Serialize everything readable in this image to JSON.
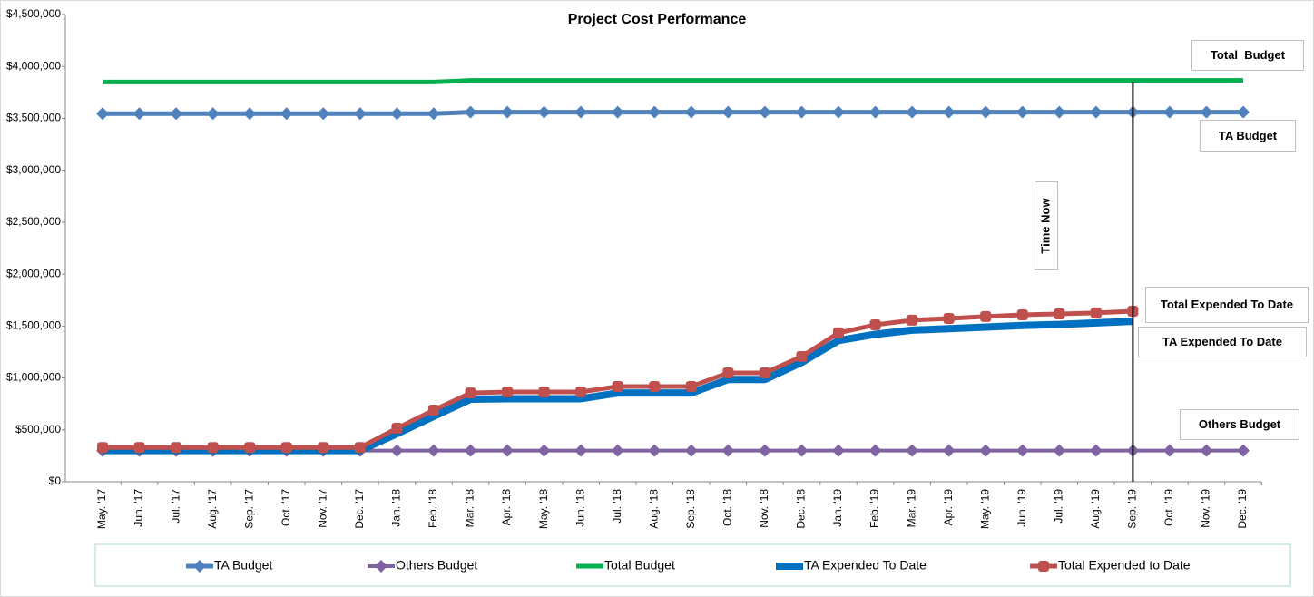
{
  "chart_data": {
    "type": "line",
    "title": "Project Cost Performance",
    "categories": [
      "May. '17",
      "Jun. '17",
      "Jul. '17",
      "Aug. '17",
      "Sep. '17",
      "Oct. '17",
      "Nov. '17",
      "Dec. '17",
      "Jan. '18",
      "Feb. '18",
      "Mar. '18",
      "Apr. '18",
      "May. '18",
      "Jun. '18",
      "Jul. '18",
      "Aug. '18",
      "Sep. '18",
      "Oct. '18",
      "Nov. '18",
      "Dec. '18",
      "Jan. '19",
      "Feb. '19",
      "Mar. '19",
      "Apr. '19",
      "May. '19",
      "Jun. '19",
      "Jul. '19",
      "Aug. '19",
      "Sep. '19",
      "Oct. '19",
      "Nov. '19",
      "Dec. '19"
    ],
    "series": [
      {
        "name": "TA Budget",
        "color": "#4f81bd",
        "marker": "diamond",
        "values": [
          3545000,
          3545000,
          3545000,
          3545000,
          3545000,
          3545000,
          3545000,
          3545000,
          3545000,
          3545000,
          3560000,
          3560000,
          3560000,
          3560000,
          3560000,
          3560000,
          3560000,
          3560000,
          3560000,
          3560000,
          3560000,
          3560000,
          3560000,
          3560000,
          3560000,
          3560000,
          3560000,
          3560000,
          3560000,
          3560000,
          3560000,
          3560000
        ]
      },
      {
        "name": "Others Budget",
        "color": "#8064a2",
        "marker": "diamond",
        "values": [
          300000,
          300000,
          300000,
          300000,
          300000,
          300000,
          300000,
          300000,
          300000,
          300000,
          300000,
          300000,
          300000,
          300000,
          300000,
          300000,
          300000,
          300000,
          300000,
          300000,
          300000,
          300000,
          300000,
          300000,
          300000,
          300000,
          300000,
          300000,
          300000,
          300000,
          300000,
          300000
        ]
      },
      {
        "name": "Total Budget",
        "color": "#00b050",
        "marker": null,
        "values": [
          3850000,
          3850000,
          3850000,
          3850000,
          3850000,
          3850000,
          3850000,
          3850000,
          3850000,
          3850000,
          3865000,
          3865000,
          3865000,
          3865000,
          3865000,
          3865000,
          3865000,
          3865000,
          3865000,
          3865000,
          3865000,
          3865000,
          3865000,
          3865000,
          3865000,
          3865000,
          3865000,
          3865000,
          3865000,
          3865000,
          3865000,
          3865000
        ]
      },
      {
        "name": "TA Expended To Date",
        "color": "#0070c0",
        "marker": null,
        "values": [
          300000,
          300000,
          300000,
          300000,
          300000,
          300000,
          300000,
          300000,
          463000,
          630000,
          795000,
          800000,
          800000,
          800000,
          855000,
          855000,
          855000,
          985000,
          985000,
          1150000,
          1360000,
          1420000,
          1460000,
          1475000,
          1490000,
          1505000,
          1515000,
          1530000,
          1545000,
          null,
          null,
          null
        ]
      },
      {
        "name": "Total Expended to Date",
        "color": "#c0504d",
        "marker": "circle",
        "values": [
          330000,
          330000,
          330000,
          330000,
          330000,
          330000,
          330000,
          330000,
          515000,
          690000,
          855000,
          865000,
          865000,
          865000,
          918000,
          918000,
          918000,
          1049000,
          1049000,
          1206000,
          1434000,
          1512000,
          1556000,
          1573000,
          1591000,
          1608000,
          1617000,
          1626000,
          1643000,
          null,
          null,
          null
        ]
      }
    ],
    "ylim": [
      0,
      4500000
    ],
    "yticks": [
      {
        "value": 0,
        "label": "$0"
      },
      {
        "value": 500000,
        "label": "$500,000"
      },
      {
        "value": 1000000,
        "label": "$1,000,000"
      },
      {
        "value": 1500000,
        "label": "$1,500,000"
      },
      {
        "value": 2000000,
        "label": "$2,000,000"
      },
      {
        "value": 2500000,
        "label": "$2,500,000"
      },
      {
        "value": 3000000,
        "label": "$3,000,000"
      },
      {
        "value": 3500000,
        "label": "$3,500,000"
      },
      {
        "value": 4000000,
        "label": "$4,000,000"
      },
      {
        "value": 4500000,
        "label": "$4,500,000"
      }
    ],
    "grid": false,
    "legend": "bottom",
    "annotations": [
      {
        "text": "Total  Budget"
      },
      {
        "text": "TA Budget"
      },
      {
        "text": "Time Now",
        "category": "Sep. '19"
      },
      {
        "text": "Total Expended To Date"
      },
      {
        "text": "TA Expended To Date"
      },
      {
        "text": "Others Budget"
      }
    ]
  }
}
